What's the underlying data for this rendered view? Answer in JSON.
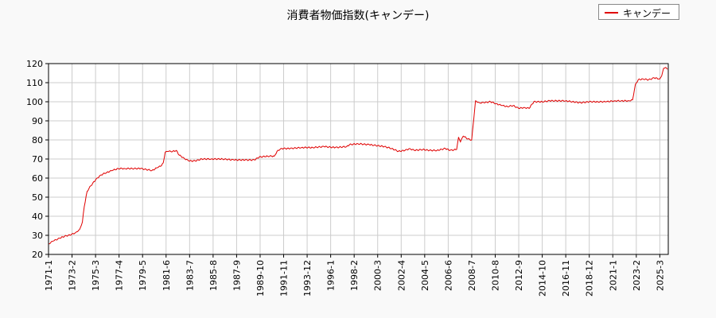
{
  "chart_data": {
    "type": "line",
    "title": "消費者物価指数(キャンデー)",
    "xlabel": "",
    "ylabel": "",
    "ylim": [
      20,
      120
    ],
    "yticks": [
      20,
      30,
      40,
      50,
      60,
      70,
      80,
      90,
      100,
      110,
      120
    ],
    "grid": true,
    "legend_position": "top-right",
    "line_color": "#e00000",
    "x_tick_labels": [
      "1971-1",
      "1973-2",
      "1975-3",
      "1977-4",
      "1979-5",
      "1981-6",
      "1983-7",
      "1985-8",
      "1987-9",
      "1989-10",
      "1991-11",
      "1993-12",
      "1996-1",
      "1998-2",
      "2000-3",
      "2002-4",
      "2004-5",
      "2006-6",
      "2008-7",
      "2010-8",
      "2012-9",
      "2014-10",
      "2016-11",
      "2018-12",
      "2021-1",
      "2023-2",
      "2025-3"
    ],
    "series": [
      {
        "name": "キャンデー",
        "points": [
          [
            "1971-1",
            25.5
          ],
          [
            "1971-6",
            27
          ],
          [
            "1972-1",
            28.5
          ],
          [
            "1972-6",
            29.5
          ],
          [
            "1973-1",
            30.3
          ],
          [
            "1973-6",
            31.5
          ],
          [
            "1973-10",
            33
          ],
          [
            "1974-1",
            37
          ],
          [
            "1974-3",
            45
          ],
          [
            "1974-6",
            53
          ],
          [
            "1974-10",
            56
          ],
          [
            "1975-3",
            59
          ],
          [
            "1975-8",
            61.5
          ],
          [
            "1976-3",
            63
          ],
          [
            "1976-9",
            64
          ],
          [
            "1977-3",
            65
          ],
          [
            "1977-10",
            65
          ],
          [
            "1978-6",
            65
          ],
          [
            "1979-3",
            65
          ],
          [
            "1979-9",
            64.5
          ],
          [
            "1980-3",
            64
          ],
          [
            "1980-9",
            65.5
          ],
          [
            "1981-1",
            66.5
          ],
          [
            "1981-3",
            68
          ],
          [
            "1981-5",
            73.5
          ],
          [
            "1981-8",
            74
          ],
          [
            "1982-1",
            74
          ],
          [
            "1982-5",
            74.5
          ],
          [
            "1982-8",
            72
          ],
          [
            "1983-1",
            70.5
          ],
          [
            "1983-6",
            69
          ],
          [
            "1984-1",
            69
          ],
          [
            "1984-8",
            70
          ],
          [
            "1985-6",
            70
          ],
          [
            "1986-6",
            70
          ],
          [
            "1987-6",
            69.5
          ],
          [
            "1988-6",
            69.5
          ],
          [
            "1989-4",
            69.5
          ],
          [
            "1989-9",
            71
          ],
          [
            "1990-6",
            71.5
          ],
          [
            "1991-1",
            71.5
          ],
          [
            "1991-4",
            74
          ],
          [
            "1991-8",
            75.5
          ],
          [
            "1992-6",
            75.5
          ],
          [
            "1993-6",
            76
          ],
          [
            "1994-6",
            76
          ],
          [
            "1995-6",
            76.5
          ],
          [
            "1996-6",
            76
          ],
          [
            "1997-6",
            76.5
          ],
          [
            "1997-9",
            77.5
          ],
          [
            "1998-6",
            78
          ],
          [
            "1999-6",
            77.5
          ],
          [
            "2000-3",
            77
          ],
          [
            "2000-10",
            76.5
          ],
          [
            "2001-6",
            75.5
          ],
          [
            "2002-1",
            74
          ],
          [
            "2002-8",
            74.5
          ],
          [
            "2003-1",
            75.5
          ],
          [
            "2003-6",
            74.5
          ],
          [
            "2004-3",
            75
          ],
          [
            "2004-10",
            74.5
          ],
          [
            "2005-6",
            74.5
          ],
          [
            "2006-3",
            75.5
          ],
          [
            "2006-8",
            74.5
          ],
          [
            "2007-3",
            75
          ],
          [
            "2007-5",
            81.5
          ],
          [
            "2007-7",
            79
          ],
          [
            "2007-10",
            82
          ],
          [
            "2008-3",
            80.5
          ],
          [
            "2008-7",
            80
          ],
          [
            "2008-11",
            100.5
          ],
          [
            "2009-3",
            99.5
          ],
          [
            "2009-8",
            99.5
          ],
          [
            "2010-3",
            100
          ],
          [
            "2010-9",
            99
          ],
          [
            "2011-3",
            98
          ],
          [
            "2011-9",
            97.5
          ],
          [
            "2012-3",
            98
          ],
          [
            "2012-9",
            96.5
          ],
          [
            "2013-3",
            97
          ],
          [
            "2013-8",
            96.5
          ],
          [
            "2014-1",
            100
          ],
          [
            "2014-10",
            100
          ],
          [
            "2015-6",
            100.5
          ],
          [
            "2016-3",
            100.5
          ],
          [
            "2016-11",
            100.5
          ],
          [
            "2017-6",
            100
          ],
          [
            "2018-3",
            99.5
          ],
          [
            "2018-12",
            100
          ],
          [
            "2019-9",
            100
          ],
          [
            "2020-6",
            100
          ],
          [
            "2021-3",
            100.5
          ],
          [
            "2021-10",
            100.5
          ],
          [
            "2022-6",
            100.5
          ],
          [
            "2022-10",
            101
          ],
          [
            "2023-1",
            109
          ],
          [
            "2023-4",
            111.5
          ],
          [
            "2023-9",
            112
          ],
          [
            "2024-3",
            111.5
          ],
          [
            "2024-9",
            112.5
          ],
          [
            "2025-3",
            112
          ],
          [
            "2025-5",
            113.5
          ],
          [
            "2025-7",
            117.5
          ],
          [
            "2025-9",
            118
          ],
          [
            "2025-11",
            117
          ]
        ]
      }
    ]
  }
}
